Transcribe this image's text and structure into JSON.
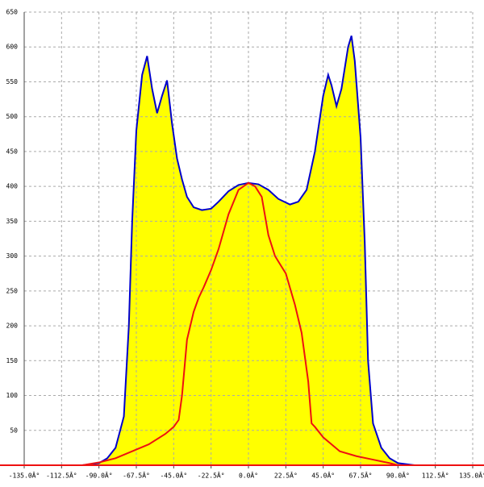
{
  "chart_data": {
    "type": "area-line",
    "xlim": [
      -135,
      135
    ],
    "ylim": [
      0,
      650
    ],
    "xticks": [
      {
        "value": -135,
        "label": "-135.0Â°"
      },
      {
        "value": -112.5,
        "label": "-112.5Â°"
      },
      {
        "value": -90,
        "label": "-90.0Â°"
      },
      {
        "value": -67.5,
        "label": "-67.5Â°"
      },
      {
        "value": -45,
        "label": "-45.0Â°"
      },
      {
        "value": -22.5,
        "label": "-22.5Â°"
      },
      {
        "value": 0,
        "label": "0.0Â°"
      },
      {
        "value": 22.5,
        "label": "22.5Â°"
      },
      {
        "value": 45,
        "label": "45.0Â°"
      },
      {
        "value": 67.5,
        "label": "67.5Â°"
      },
      {
        "value": 90,
        "label": "90.0Â°"
      },
      {
        "value": 112.5,
        "label": "112.5Â°"
      },
      {
        "value": 135,
        "label": "135.0Â°"
      }
    ],
    "yticks": [
      50,
      100,
      150,
      200,
      250,
      300,
      350,
      400,
      450,
      500,
      550,
      600,
      650
    ],
    "grid": true,
    "series": [
      {
        "color": "#0000cc",
        "fill": "#ffff00",
        "x": [
          -100,
          -90,
          -85,
          -80,
          -75,
          -72,
          -70,
          -67.5,
          -64,
          -61,
          -58,
          -55,
          -52,
          -49,
          -46,
          -43,
          -40,
          -37,
          -33,
          -28,
          -22.5,
          -18,
          -12,
          -6,
          0,
          6,
          12,
          18,
          25,
          30,
          35,
          40,
          45,
          48,
          50,
          53,
          56,
          60,
          62,
          64,
          67.5,
          70,
          72,
          75,
          80,
          85,
          90,
          100
        ],
        "values": [
          0,
          3,
          10,
          25,
          70,
          200,
          350,
          480,
          560,
          587,
          540,
          505,
          530,
          552,
          490,
          440,
          410,
          385,
          370,
          366,
          368,
          378,
          393,
          402,
          405,
          403,
          395,
          382,
          374,
          378,
          395,
          450,
          530,
          560,
          545,
          515,
          540,
          600,
          616,
          580,
          470,
          320,
          150,
          60,
          25,
          10,
          3,
          0
        ]
      },
      {
        "color": "#ee1111",
        "x": [
          -100,
          -90,
          -80,
          -70,
          -60,
          -50,
          -45,
          -42,
          -40,
          -37,
          -33,
          -30,
          -27,
          -22.5,
          -18,
          -12,
          -6,
          0,
          4,
          8,
          12,
          16,
          22.5,
          28,
          32,
          36,
          38,
          40,
          45,
          55,
          65,
          75,
          85,
          90
        ],
        "values": [
          0,
          4,
          10,
          20,
          30,
          45,
          55,
          65,
          100,
          180,
          220,
          240,
          255,
          280,
          310,
          360,
          395,
          405,
          400,
          385,
          330,
          300,
          275,
          230,
          190,
          120,
          60,
          55,
          40,
          20,
          13,
          8,
          3,
          0
        ]
      }
    ]
  }
}
